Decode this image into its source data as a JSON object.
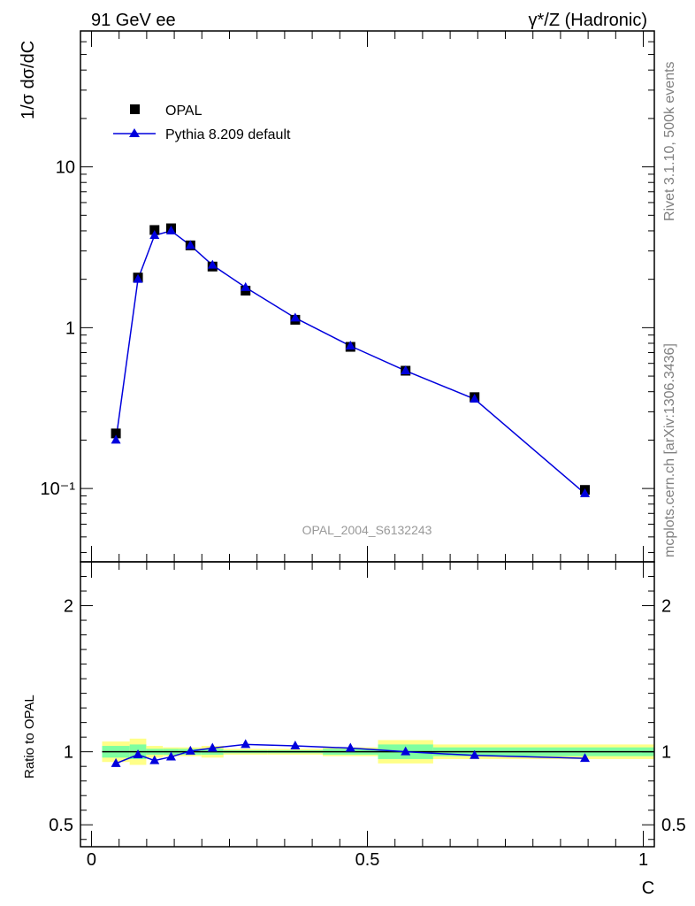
{
  "header": {
    "left_title": "91 GeV ee",
    "right_title": "γ*/Z (Hadronic)"
  },
  "side_texts": {
    "rivet": "Rivet 3.1.10,  500k events",
    "mcplots": "mcplots.cern.ch [arXiv:1306.3436]"
  },
  "watermark": "OPAL_2004_S6132243",
  "colors": {
    "data": "#000000",
    "mc": "#0000dd",
    "band_inner": "#7fffa0",
    "band_outer": "#ffff88",
    "ratio_line": "#000000"
  },
  "chart_data": [
    {
      "type": "scatter",
      "panel": "main",
      "ylabel": "1/σ dσ/dC",
      "yscale": "log",
      "ylim": [
        0.035,
        70
      ],
      "xlim": [
        -0.02,
        1.02
      ],
      "ytick_labels": [
        "10⁻¹",
        "1",
        "10"
      ],
      "legend": {
        "placement": "top-left",
        "entries": [
          "OPAL",
          "Pythia 8.209 default"
        ]
      },
      "series": [
        {
          "name": "OPAL",
          "marker": "square",
          "x": [
            0.025,
            0.065,
            0.095,
            0.125,
            0.16,
            0.2,
            0.26,
            0.35,
            0.45,
            0.55,
            0.675,
            0.875
          ],
          "y": [
            0.22,
            2.05,
            4.05,
            4.15,
            3.25,
            2.4,
            1.7,
            1.12,
            0.76,
            0.54,
            0.37,
            0.098
          ]
        },
        {
          "name": "Pythia 8.209 default",
          "marker": "triangle",
          "x": [
            0.025,
            0.065,
            0.095,
            0.125,
            0.16,
            0.2,
            0.26,
            0.35,
            0.45,
            0.55,
            0.675,
            0.875
          ],
          "y": [
            0.2,
            2.0,
            3.75,
            4.0,
            3.25,
            2.45,
            1.78,
            1.15,
            0.77,
            0.54,
            0.36,
            0.093
          ]
        }
      ]
    },
    {
      "type": "line",
      "panel": "ratio",
      "ylabel": "Ratio to OPAL",
      "xlabel": "C",
      "ylim": [
        0.35,
        2.3
      ],
      "xlim": [
        -0.02,
        1.02
      ],
      "xtick_labels": [
        "0",
        "0.5",
        "1"
      ],
      "ytick_labels": [
        "0.5",
        "1",
        "2"
      ],
      "series": [
        {
          "name": "Pythia 8.209 default",
          "x": [
            0.025,
            0.065,
            0.095,
            0.125,
            0.16,
            0.2,
            0.26,
            0.35,
            0.45,
            0.55,
            0.675,
            0.875
          ],
          "y": [
            0.92,
            0.98,
            0.94,
            0.965,
            1.005,
            1.025,
            1.05,
            1.04,
            1.025,
            1.0,
            0.975,
            0.955
          ]
        }
      ],
      "uncertainty_bands": [
        {
          "x0": 0.0,
          "x1": 0.05,
          "inner": 0.04,
          "outer": 0.07
        },
        {
          "x0": 0.05,
          "x1": 0.08,
          "inner": 0.05,
          "outer": 0.09
        },
        {
          "x0": 0.08,
          "x1": 0.11,
          "inner": 0.02,
          "outer": 0.04
        },
        {
          "x0": 0.11,
          "x1": 0.14,
          "inner": 0.02,
          "outer": 0.03
        },
        {
          "x0": 0.14,
          "x1": 0.18,
          "inner": 0.02,
          "outer": 0.03
        },
        {
          "x0": 0.18,
          "x1": 0.22,
          "inner": 0.02,
          "outer": 0.04
        },
        {
          "x0": 0.22,
          "x1": 0.3,
          "inner": 0.01,
          "outer": 0.02
        },
        {
          "x0": 0.3,
          "x1": 0.4,
          "inner": 0.01,
          "outer": 0.02
        },
        {
          "x0": 0.4,
          "x1": 0.5,
          "inner": 0.02,
          "outer": 0.03
        },
        {
          "x0": 0.5,
          "x1": 0.6,
          "inner": 0.05,
          "outer": 0.08
        },
        {
          "x0": 0.6,
          "x1": 0.75,
          "inner": 0.03,
          "outer": 0.05
        },
        {
          "x0": 0.75,
          "x1": 1.0,
          "inner": 0.03,
          "outer": 0.05
        }
      ]
    }
  ]
}
